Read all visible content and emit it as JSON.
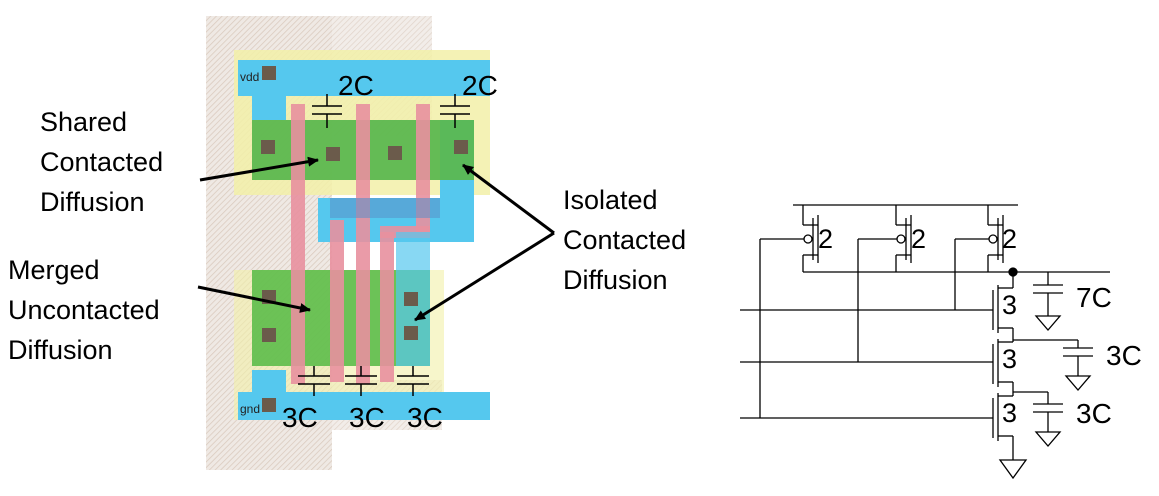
{
  "layout_labels": {
    "shared_contacted_diffusion": [
      "Shared",
      "Contacted",
      "Diffusion"
    ],
    "isolated_contacted_diffusion": [
      "Isolated",
      "Contacted",
      "Diffusion"
    ],
    "merged_uncontacted_diffusion": [
      "Merged",
      "Uncontacted",
      "Diffusion"
    ]
  },
  "rail_labels": {
    "vdd": "vdd",
    "gnd": "gnd"
  },
  "layout_caps": {
    "top": [
      "2C",
      "2C"
    ],
    "bottom": [
      "3C",
      "3C",
      "3C"
    ]
  },
  "schematic": {
    "pmos_sizes": [
      "2",
      "2",
      "2"
    ],
    "nmos_sizes": [
      "3",
      "3",
      "3"
    ],
    "node_caps": [
      "7C",
      "3C",
      "3C"
    ]
  },
  "colors": {
    "metal1": "#55c8ee",
    "poly": "#e8909e",
    "diffusion": "#6fcf4a",
    "well": "#f2f0a8",
    "contact": "#6b5b4b",
    "wire": "#000000"
  }
}
